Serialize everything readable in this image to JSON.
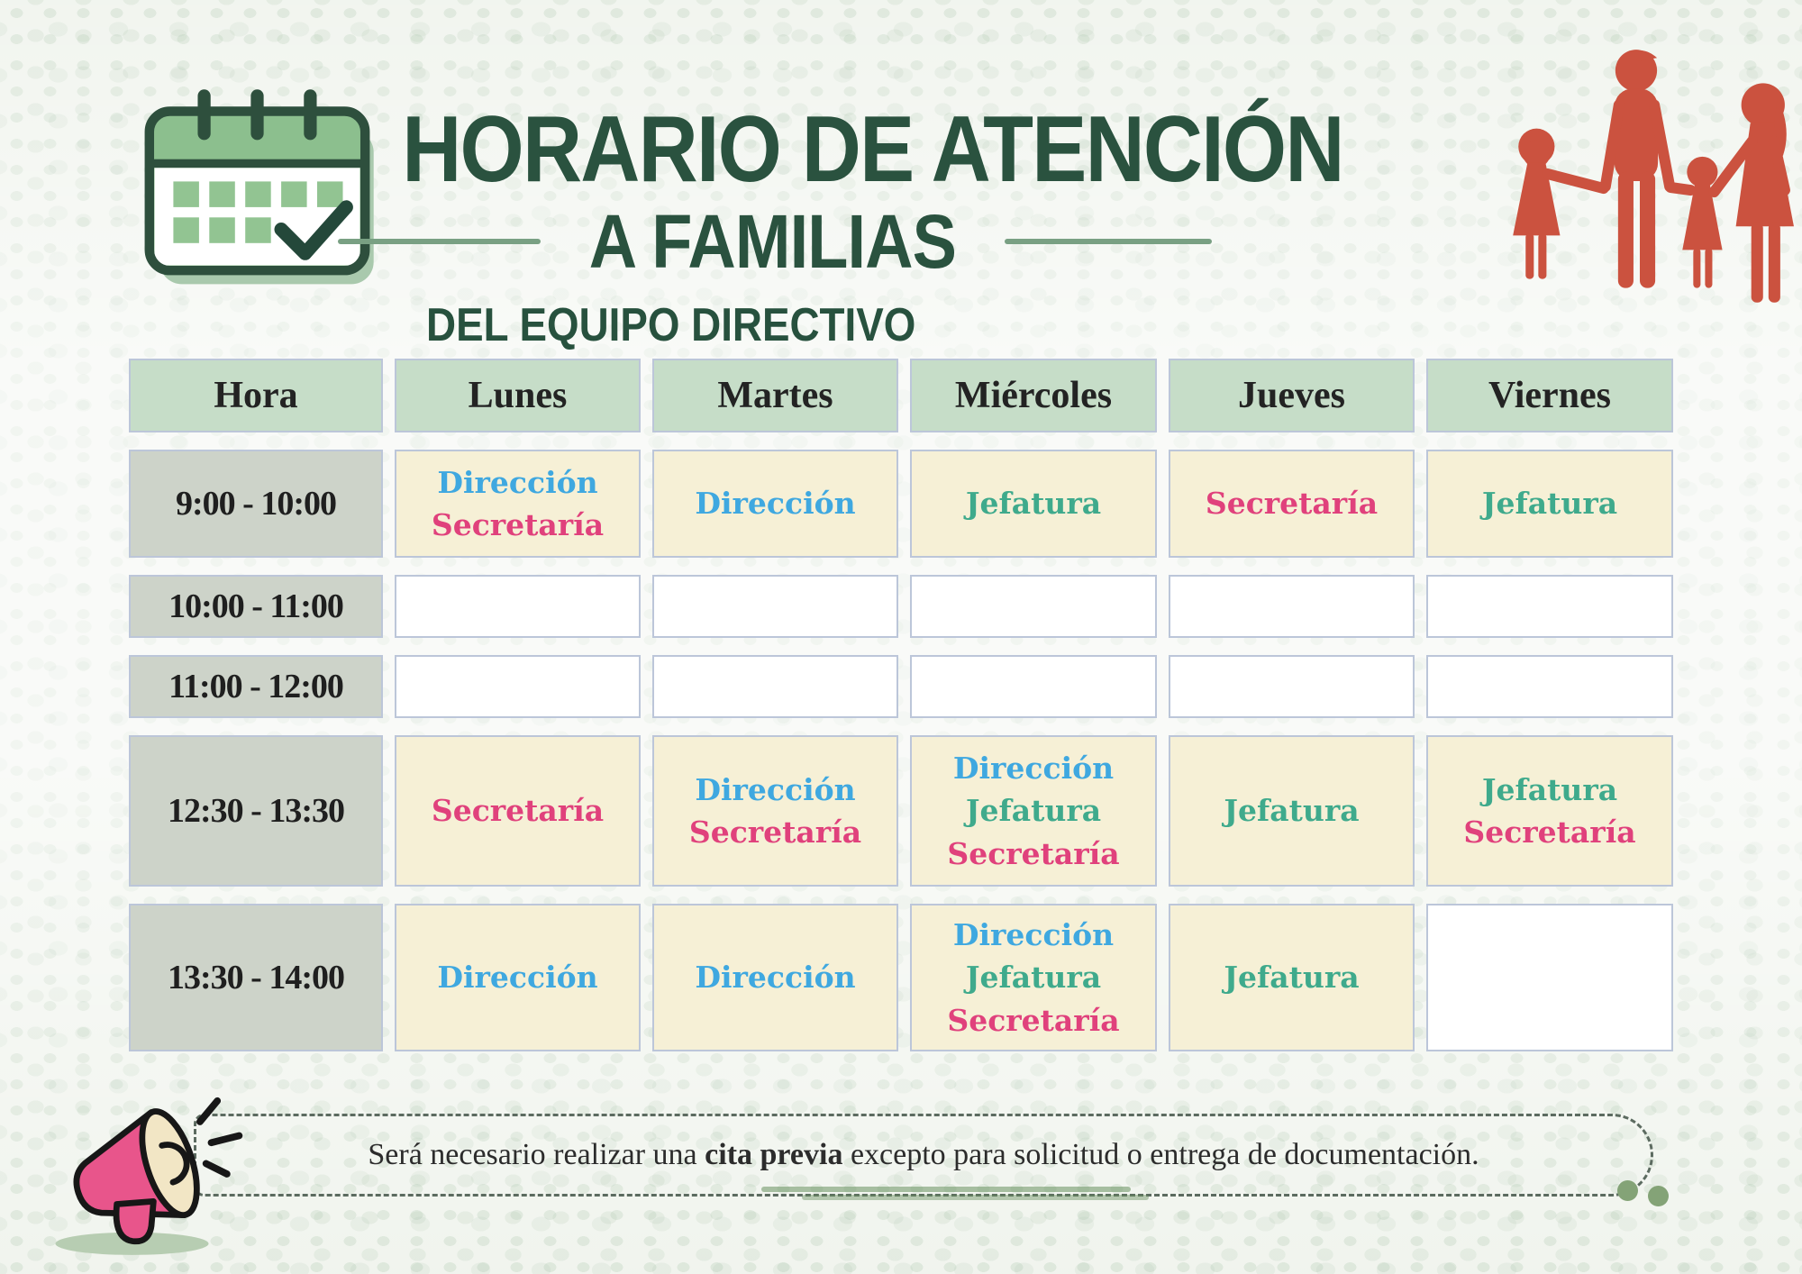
{
  "header": {
    "title_line1": "HORARIO DE ATENCIÓN",
    "title_line2": "A FAMILIAS",
    "title_line3": "DEL EQUIPO DIRECTIVO"
  },
  "table": {
    "headers": [
      "Hora",
      "Lunes",
      "Martes",
      "Miércoles",
      "Jueves",
      "Viernes"
    ],
    "rows": [
      {
        "time": "9:00 - 10:00",
        "cells": [
          [
            "Dirección",
            "Secretaría"
          ],
          [
            "Dirección"
          ],
          [
            "Jefatura"
          ],
          [
            "Secretaría"
          ],
          [
            "Jefatura"
          ]
        ]
      },
      {
        "time": "10:00 - 11:00",
        "cells": [
          [],
          [],
          [],
          [],
          []
        ]
      },
      {
        "time": "11:00 - 12:00",
        "cells": [
          [],
          [],
          [],
          [],
          []
        ]
      },
      {
        "time": "12:30 - 13:30",
        "cells": [
          [
            "Secretaría"
          ],
          [
            "Dirección",
            "Secretaría"
          ],
          [
            "Dirección",
            "Jefatura",
            "Secretaría"
          ],
          [
            "Jefatura"
          ],
          [
            "Jefatura",
            "Secretaría"
          ]
        ]
      },
      {
        "time": "13:30 - 14:00",
        "cells": [
          [
            "Dirección"
          ],
          [
            "Dirección"
          ],
          [
            "Dirección",
            "Jefatura",
            "Secretaría"
          ],
          [
            "Jefatura"
          ],
          []
        ]
      }
    ]
  },
  "roles": {
    "Dirección": "#3fa8e0",
    "Jefatura": "#3faa8c",
    "Secretaría": "#e0417c"
  },
  "note": {
    "text_prefix": "Será necesario realizar una ",
    "text_bold": "cita previa",
    "text_suffix": " excepto para solicitud o entrega de documentación."
  },
  "colors": {
    "title_green": "#2a523f",
    "header_cell_bg": "#c6ddc8",
    "time_cell_bg": "#cdd3c9",
    "filled_cell_bg": "#f6f0d6",
    "empty_cell_bg": "#ffffff",
    "family_red": "#cb523f",
    "megaphone_pink": "#e8558b",
    "divider_green": "#79a083"
  }
}
